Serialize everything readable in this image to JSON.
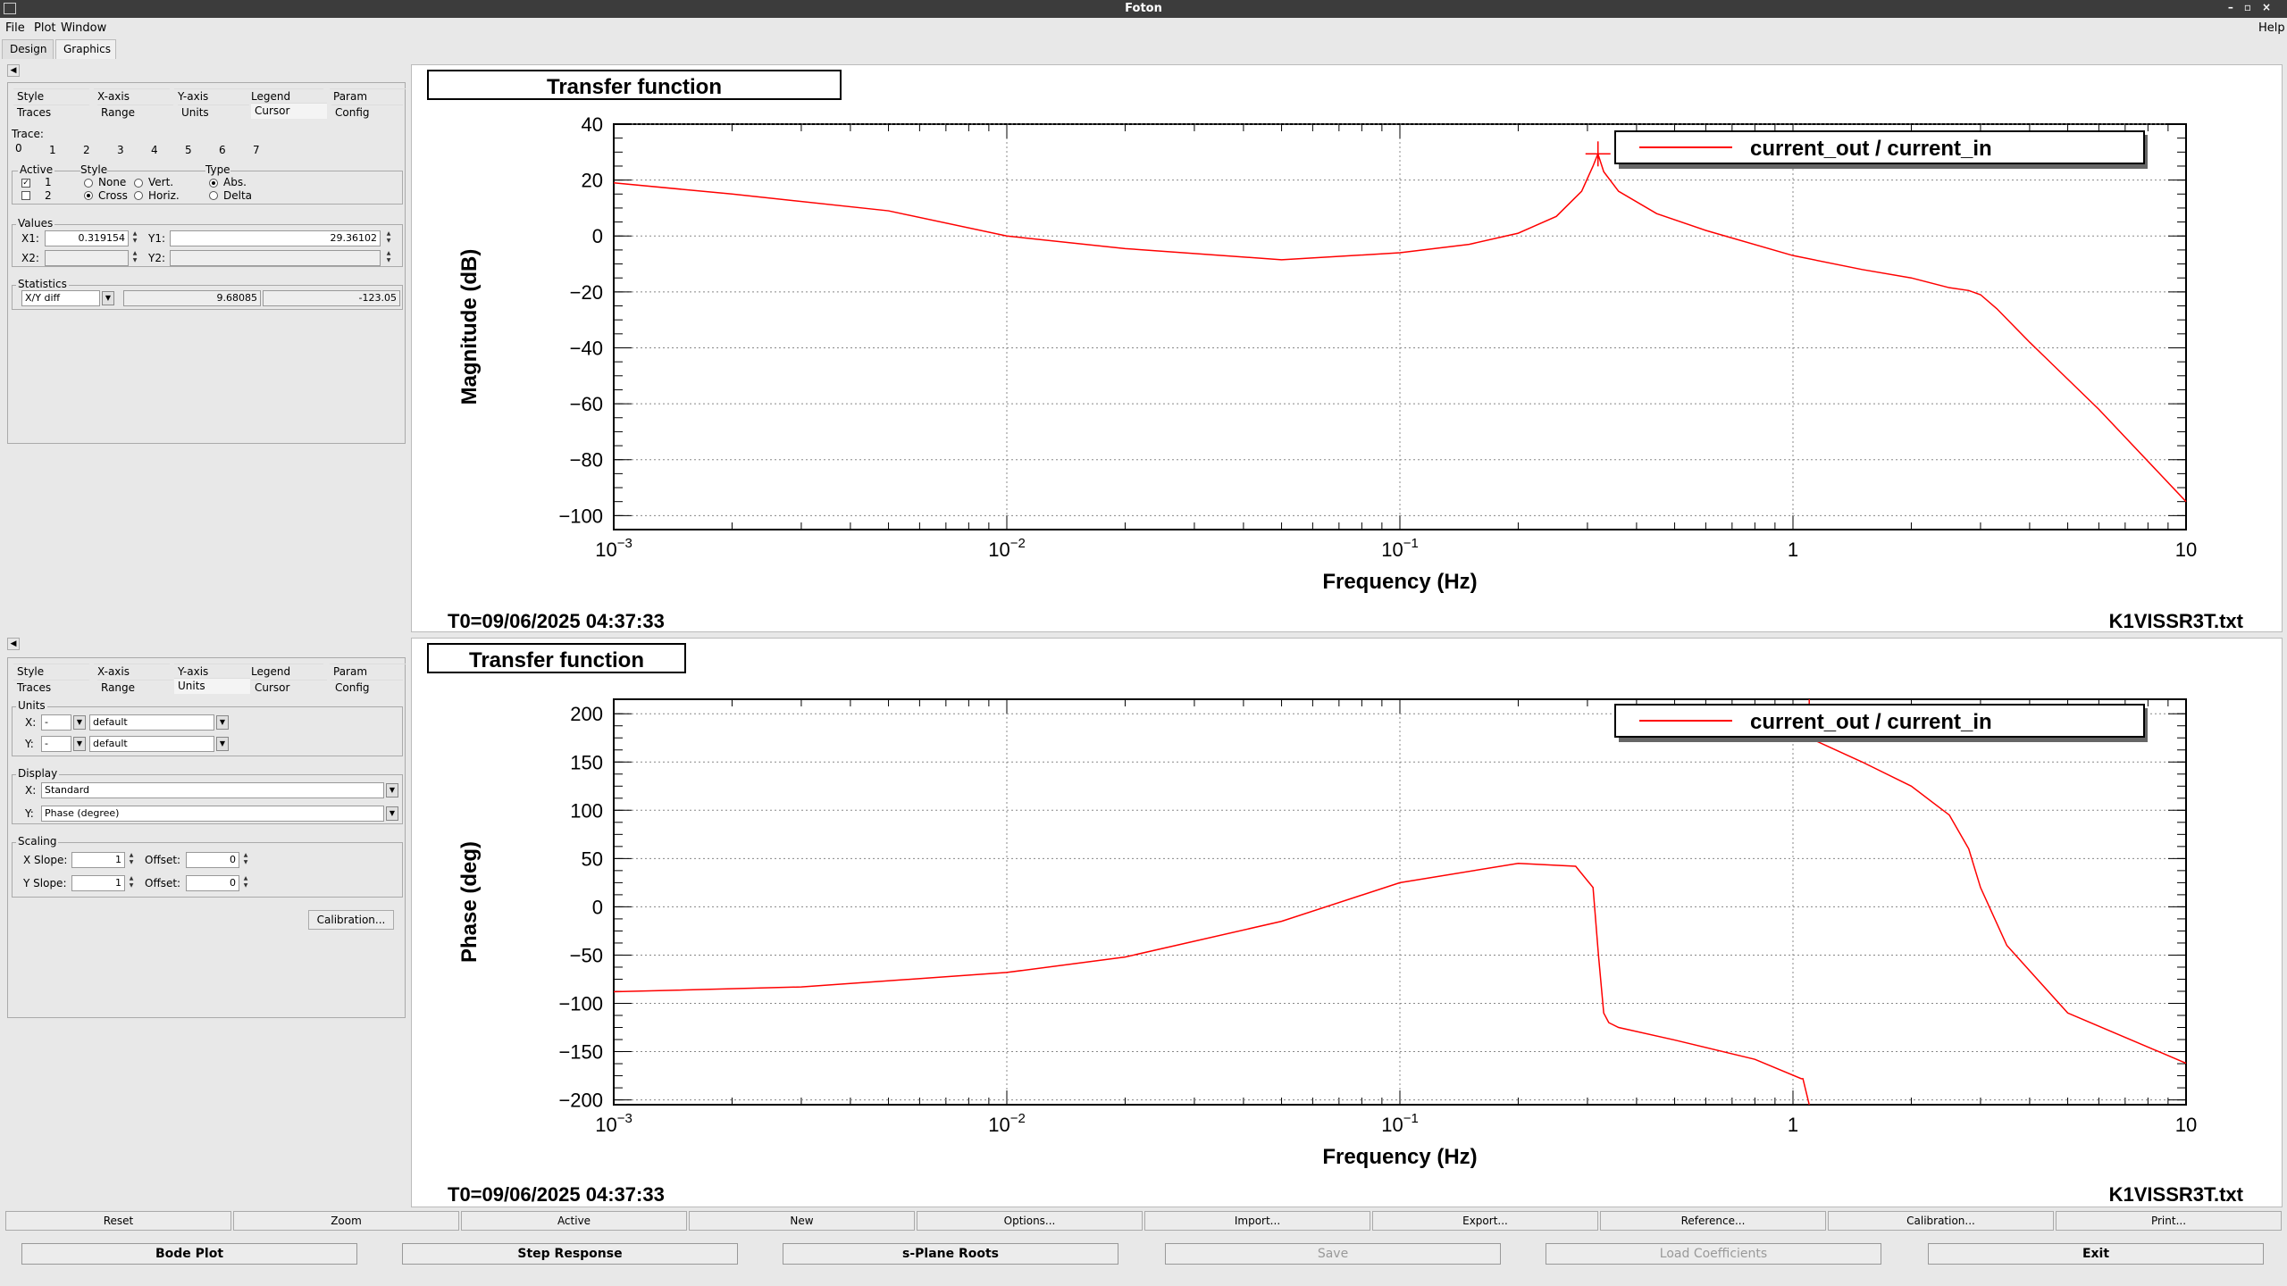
{
  "window": {
    "title": "Foton"
  },
  "menu": {
    "file": "File",
    "plot": "Plot",
    "window": "Window",
    "help": "Help"
  },
  "tabs": {
    "design": "Design",
    "graphics": "Graphics"
  },
  "top_panel": {
    "tabs_row1": [
      "Style",
      "X-axis",
      "Y-axis",
      "Legend",
      "Param"
    ],
    "tabs_row2": [
      "Traces",
      "Range",
      "Units",
      "Cursor",
      "Config"
    ],
    "trace_label": "Trace:",
    "trace_tabs": [
      "0",
      "1",
      "2",
      "3",
      "4",
      "5",
      "6",
      "7"
    ],
    "active_label": "Active",
    "active_items": [
      "1",
      "2"
    ],
    "style_label": "Style",
    "style_options": [
      "None",
      "Vert.",
      "Cross",
      "Horiz."
    ],
    "type_label": "Type",
    "type_options": [
      "Abs.",
      "Delta"
    ],
    "values_label": "Values",
    "x1_label": "X1:",
    "x1_value": "0.319154",
    "y1_label": "Y1:",
    "y1_value": "29.36102",
    "x2_label": "X2:",
    "y2_label": "Y2:",
    "statistics_label": "Statistics",
    "stat_select": "X/Y diff",
    "stat_val1": "9.68085",
    "stat_val2": "-123.05"
  },
  "bottom_panel": {
    "tabs_row1": [
      "Style",
      "X-axis",
      "Y-axis",
      "Legend",
      "Param"
    ],
    "tabs_row2": [
      "Traces",
      "Range",
      "Units",
      "Cursor",
      "Config"
    ],
    "units_label": "Units",
    "ux_label": "X:",
    "ux_unit": "-",
    "ux_value": "default",
    "uy_label": "Y:",
    "uy_unit": "-",
    "uy_value": "default",
    "display_label": "Display",
    "dx_label": "X:",
    "dx_value": "Standard",
    "dy_label": "Y:",
    "dy_value": "Phase (degree)",
    "scaling_label": "Scaling",
    "xslope_label": "X Slope:",
    "xslope_value": "1",
    "yslope_label": "Y Slope:",
    "yslope_value": "1",
    "offset_label": "Offset:",
    "xoffset_value": "0",
    "yoffset_value": "0",
    "calibration_button": "Calibration..."
  },
  "plot_top": {
    "title": "Transfer function",
    "legend": "current_out / current_in",
    "t0": "T0=09/06/2025 04:37:33",
    "file": "K1VISSR3T.txt"
  },
  "plot_bottom": {
    "title": "Transfer function",
    "legend": "current_out / current_in",
    "t0": "T0=09/06/2025 04:37:33",
    "file": "K1VISSR3T.txt"
  },
  "toolbar": [
    "Reset",
    "Zoom",
    "Active",
    "New",
    "Options...",
    "Import...",
    "Export...",
    "Reference...",
    "Calibration...",
    "Print..."
  ],
  "bottom_buttons": {
    "bode": "Bode Plot",
    "step": "Step Response",
    "splane": "s-Plane Roots",
    "save": "Save",
    "load": "Load Coefficients",
    "exit": "Exit"
  },
  "colors": {
    "trace": "#ff0000",
    "titlebar": "#3c3c3c"
  },
  "chart_data": [
    {
      "type": "line",
      "xlabel": "Frequency (Hz)",
      "ylabel": "Magnitude (dB)",
      "xscale": "log",
      "xlim": [
        0.001,
        10
      ],
      "ylim": [
        -105,
        40
      ],
      "xticks": [
        "10^-3",
        "10^-2",
        "10^-1",
        "1",
        "10"
      ],
      "yticks": [
        40,
        20,
        0,
        -20,
        -40,
        -60,
        -80,
        -100
      ],
      "grid": true,
      "legend_position": "top-right",
      "series": [
        {
          "name": "current_out / current_in",
          "x": [
            0.001,
            0.002,
            0.005,
            0.01,
            0.02,
            0.05,
            0.1,
            0.15,
            0.2,
            0.25,
            0.29,
            0.31,
            0.319,
            0.33,
            0.36,
            0.45,
            0.6,
            1,
            1.5,
            2,
            2.5,
            2.8,
            3,
            3.3,
            4,
            6,
            10
          ],
          "y": [
            19,
            15,
            9,
            0,
            -4.5,
            -8.5,
            -6,
            -3,
            1,
            7,
            16,
            25,
            29.4,
            23,
            16,
            8,
            2,
            -7,
            -12,
            -15,
            -18.5,
            -19.5,
            -21,
            -26,
            -38,
            -62,
            -95
          ]
        }
      ],
      "cursor": {
        "x": 0.319154,
        "y": 29.36102
      }
    },
    {
      "type": "line",
      "xlabel": "Frequency (Hz)",
      "ylabel": "Phase (deg)",
      "xscale": "log",
      "xlim": [
        0.001,
        10
      ],
      "ylim": [
        -205,
        215
      ],
      "xticks": [
        "10^-3",
        "10^-2",
        "10^-1",
        "1",
        "10"
      ],
      "yticks": [
        200,
        150,
        100,
        50,
        0,
        -50,
        -100,
        -150,
        -200
      ],
      "grid": true,
      "legend_position": "top-right",
      "series": [
        {
          "name": "current_out / current_in",
          "x": [
            0.001,
            0.003,
            0.01,
            0.02,
            0.05,
            0.1,
            0.2,
            0.28,
            0.31,
            0.32,
            0.33,
            0.34,
            0.36,
            0.5,
            0.8,
            1.05,
            1.06,
            1.1,
            1.5,
            2,
            2.5,
            2.8,
            3,
            3.5,
            5,
            10
          ],
          "y": [
            -88,
            -83,
            -68,
            -52,
            -15,
            25,
            45,
            42,
            20,
            -50,
            -110,
            -120,
            -125,
            -138,
            -158,
            -178,
            -178,
            175,
            150,
            125,
            95,
            60,
            20,
            -40,
            -110,
            -162
          ]
        }
      ]
    }
  ]
}
